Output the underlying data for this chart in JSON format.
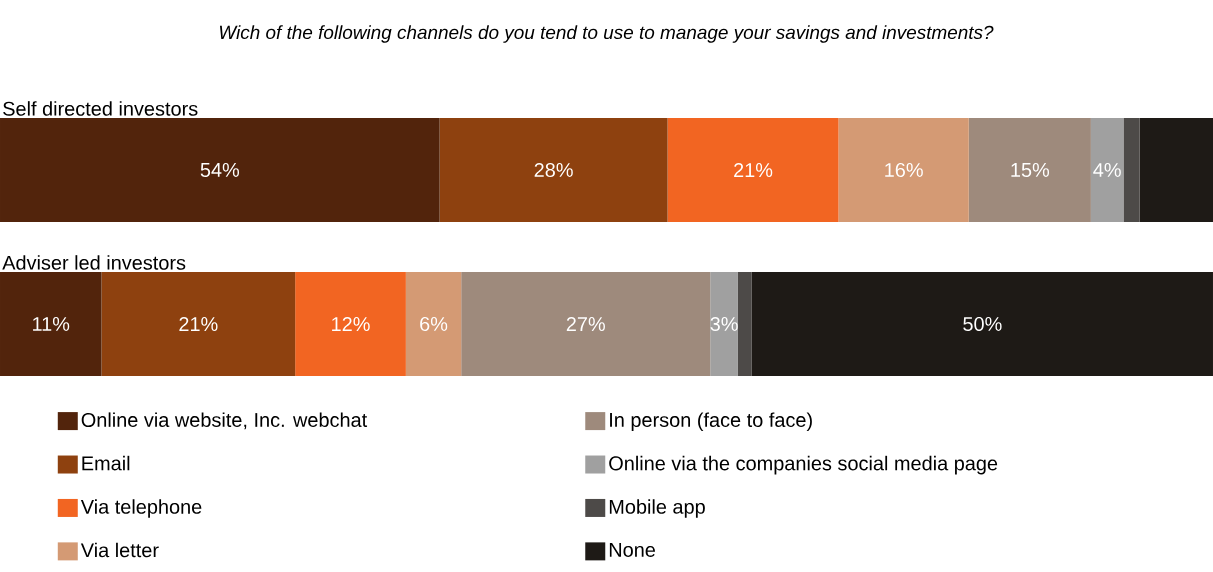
{
  "chart_data": [
    {
      "type": "bar",
      "orientation": "horizontal",
      "stacked": true,
      "title": "Wich of the following channels do you tend to use to manage your savings and investments?",
      "categories": [
        "Self directed investors"
      ],
      "xlim": [
        0,
        149
      ],
      "series": [
        {
          "color": "#52240c",
          "values": [
            54
          ],
          "value_labels": [
            "54%"
          ]
        },
        {
          "color": "#8e410f",
          "values": [
            28
          ],
          "value_labels": [
            "28%"
          ]
        },
        {
          "color": "#f26522",
          "values": [
            21
          ],
          "value_labels": [
            "21%"
          ]
        },
        {
          "color": "#d49a74",
          "values": [
            16
          ],
          "value_labels": [
            "16%"
          ]
        },
        {
          "color": "#9e8a7c",
          "values": [
            15
          ],
          "value_labels": [
            "15%"
          ]
        },
        {
          "color": "#a0a0a0",
          "values": [
            4
          ],
          "value_labels": [
            "4%"
          ]
        },
        {
          "color": "#4d4a48",
          "values": [
            2
          ],
          "value_labels": [
            null
          ]
        },
        {
          "color": "#1e1a16",
          "values": [
            9
          ],
          "value_labels": [
            null
          ]
        }
      ]
    },
    {
      "type": "bar",
      "orientation": "horizontal",
      "stacked": true,
      "legend": "bottom",
      "categories": [
        "Adviser led investors"
      ],
      "xlim": [
        0,
        131.5
      ],
      "series": [
        {
          "name": "Online via website, Inc. webchat",
          "color": "#52240c",
          "values": [
            11
          ],
          "value_labels": [
            "11%"
          ]
        },
        {
          "name": "Email",
          "color": "#8e410f",
          "values": [
            21
          ],
          "value_labels": [
            "21%"
          ]
        },
        {
          "name": "Via telephone",
          "color": "#f26522",
          "values": [
            12
          ],
          "value_labels": [
            "12%"
          ]
        },
        {
          "name": "Via letter",
          "color": "#d49a74",
          "values": [
            6
          ],
          "value_labels": [
            "6%"
          ]
        },
        {
          "name": "In person (face to face)",
          "color": "#9e8a7c",
          "values": [
            27
          ],
          "value_labels": [
            "27%"
          ]
        },
        {
          "name": "Online via the companies social media page",
          "color": "#a0a0a0",
          "values": [
            3
          ],
          "value_labels": [
            "3%"
          ]
        },
        {
          "name": "Mobile app",
          "color": "#4d4a48",
          "values": [
            1.5
          ],
          "value_labels": [
            null
          ]
        },
        {
          "name": "None",
          "color": "#1e1a16",
          "values": [
            50
          ],
          "value_labels": [
            "50%"
          ]
        }
      ]
    }
  ]
}
